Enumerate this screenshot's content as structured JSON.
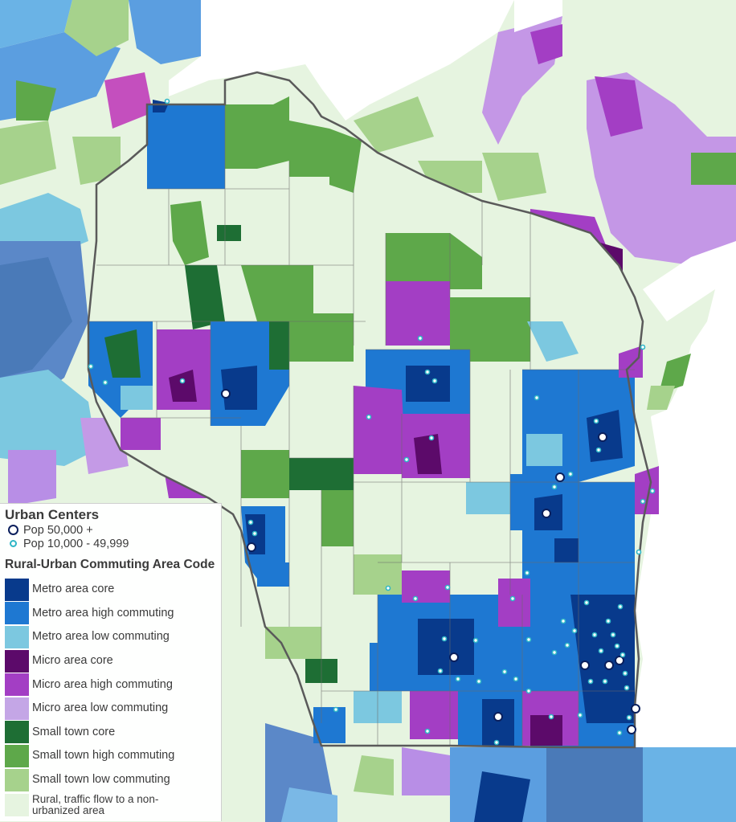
{
  "legend": {
    "points_title": "Urban Centers",
    "points": [
      {
        "label": "Pop 50,000 +",
        "style": "large-white-navy-ring"
      },
      {
        "label": "Pop 10,000 - 49,999",
        "style": "small-white-teal-ring"
      }
    ],
    "classes_title": "Rural-Urban Commuting Area Code",
    "classes": [
      {
        "label": "Metro area core",
        "color": "#083a8c"
      },
      {
        "label": "Metro area high commuting",
        "color": "#1e78d2"
      },
      {
        "label": "Metro area low commuting",
        "color": "#7cc8e0"
      },
      {
        "label": "Micro area core",
        "color": "#5c0a6a"
      },
      {
        "label": "Micro area high commuting",
        "color": "#a33ec4"
      },
      {
        "label": "Micro area low commuting",
        "color": "#c4a6e6"
      },
      {
        "label": "Small town core",
        "color": "#1e6e34"
      },
      {
        "label": "Small town high commuting",
        "color": "#5ea84a"
      },
      {
        "label": "Small town low commuting",
        "color": "#a6d28c"
      },
      {
        "label": "Rural, traffic flow to a non-urbanized area",
        "color": "#e6f4e0"
      }
    ]
  },
  "map": {
    "water_color": "#ffffff",
    "state_outline_color": "#5a5a5a"
  }
}
